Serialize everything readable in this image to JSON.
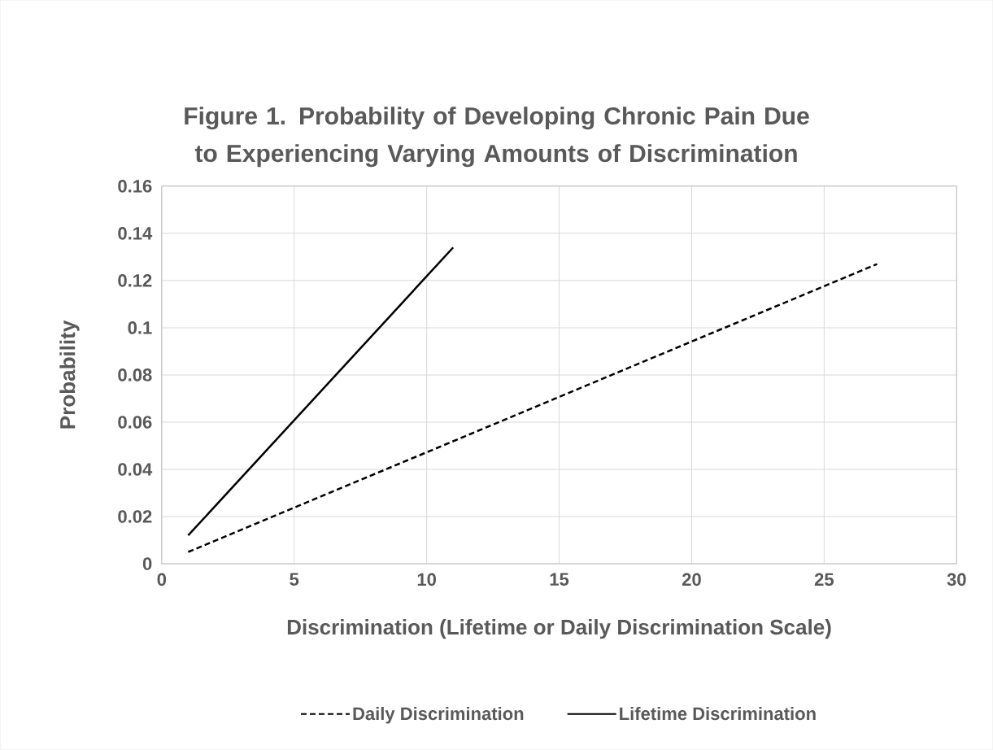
{
  "chart_data": {
    "type": "line",
    "title": "Figure 1. Probability of Developing Chronic Pain Due to Experiencing Varying Amounts  of Discrimination",
    "xlabel": "Discrimination (Lifetime or Daily Discrimination Scale)",
    "ylabel": "Probability",
    "series": [
      {
        "name": "Daily Discrimination",
        "color": "#000000",
        "line_style": "dashed",
        "x": [
          1,
          27
        ],
        "values": [
          0.005,
          0.127
        ]
      },
      {
        "name": "Lifetime Discrimination",
        "color": "#000000",
        "line_style": "solid",
        "x": [
          1,
          11
        ],
        "values": [
          0.012,
          0.134
        ]
      }
    ],
    "xlim": [
      0,
      30
    ],
    "xticks": [
      0,
      5,
      10,
      15,
      20,
      25,
      30
    ],
    "ylim": [
      0,
      0.16
    ],
    "yticks": [
      0,
      0.02,
      0.04,
      0.06,
      0.08,
      0.1,
      0.12,
      0.14,
      0.16
    ],
    "grid": true,
    "legend": "bottom",
    "marker": "none"
  }
}
